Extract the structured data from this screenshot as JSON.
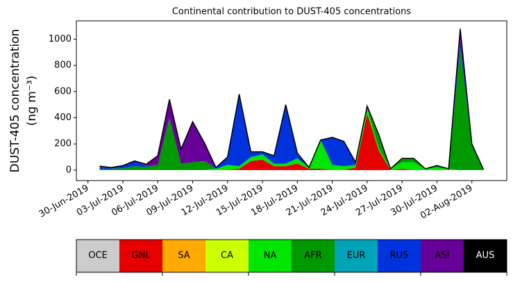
{
  "chart_data": {
    "type": "stacked_area",
    "title": "Continental contribution to DUST-405 concentrations",
    "y_label": "DUST-405 concentration",
    "y_label_unit": "(ng m⁻³)",
    "x": [
      "2019-07-01",
      "2019-07-02",
      "2019-07-03",
      "2019-07-04",
      "2019-07-05",
      "2019-07-06",
      "2019-07-07",
      "2019-07-08",
      "2019-07-09",
      "2019-07-10",
      "2019-07-11",
      "2019-07-12",
      "2019-07-13",
      "2019-07-14",
      "2019-07-15",
      "2019-07-16",
      "2019-07-17",
      "2019-07-18",
      "2019-07-19",
      "2019-07-20",
      "2019-07-21",
      "2019-07-22",
      "2019-07-23",
      "2019-07-24",
      "2019-07-25",
      "2019-07-26",
      "2019-07-27",
      "2019-07-28",
      "2019-07-29",
      "2019-07-30",
      "2019-07-31",
      "2019-08-01",
      "2019-08-02",
      "2019-08-03"
    ],
    "series": [
      {
        "name": "OCE",
        "color": "#cccccc",
        "values": [
          0,
          0,
          0,
          0,
          0,
          0,
          0,
          0,
          0,
          0,
          0,
          0,
          0,
          0,
          0,
          0,
          0,
          0,
          0,
          0,
          0,
          0,
          0,
          0,
          0,
          0,
          0,
          0,
          0,
          0,
          0,
          0,
          0,
          0
        ]
      },
      {
        "name": "GNL",
        "color": "#e60000",
        "values": [
          0,
          0,
          0,
          0,
          0,
          0,
          0,
          0,
          0,
          0,
          0,
          0,
          10,
          70,
          80,
          30,
          30,
          50,
          10,
          10,
          0,
          0,
          20,
          430,
          150,
          0,
          10,
          0,
          0,
          0,
          0,
          0,
          0,
          0
        ]
      },
      {
        "name": "SA",
        "color": "#ffaa00",
        "values": [
          0,
          0,
          0,
          0,
          0,
          0,
          0,
          0,
          0,
          0,
          0,
          0,
          0,
          0,
          0,
          0,
          0,
          0,
          0,
          0,
          0,
          0,
          0,
          0,
          0,
          0,
          0,
          0,
          0,
          0,
          0,
          0,
          0,
          0
        ]
      },
      {
        "name": "CA",
        "color": "#ccff00",
        "values": [
          0,
          0,
          0,
          0,
          0,
          0,
          0,
          0,
          0,
          0,
          0,
          0,
          0,
          0,
          0,
          0,
          0,
          0,
          0,
          0,
          0,
          0,
          0,
          0,
          0,
          0,
          0,
          0,
          0,
          0,
          0,
          0,
          0,
          0
        ]
      },
      {
        "name": "NA",
        "color": "#00e600",
        "values": [
          0,
          0,
          0,
          0,
          0,
          0,
          0,
          0,
          0,
          0,
          10,
          40,
          20,
          30,
          40,
          20,
          20,
          40,
          10,
          220,
          40,
          30,
          20,
          40,
          20,
          10,
          50,
          60,
          10,
          20,
          10,
          0,
          0,
          0
        ]
      },
      {
        "name": "AFR",
        "color": "#009900",
        "values": [
          10,
          10,
          15,
          30,
          25,
          40,
          400,
          50,
          60,
          70,
          0,
          0,
          0,
          0,
          0,
          0,
          0,
          0,
          0,
          0,
          0,
          0,
          0,
          0,
          100,
          0,
          30,
          30,
          0,
          15,
          0,
          930,
          190,
          5
        ]
      },
      {
        "name": "EUR",
        "color": "#00a3b8",
        "values": [
          0,
          0,
          0,
          0,
          0,
          0,
          0,
          0,
          0,
          0,
          0,
          0,
          0,
          0,
          0,
          0,
          0,
          0,
          0,
          0,
          0,
          0,
          0,
          0,
          0,
          0,
          0,
          0,
          0,
          0,
          0,
          0,
          0,
          0
        ]
      },
      {
        "name": "RUS",
        "color": "#0033dd",
        "values": [
          10,
          10,
          20,
          40,
          10,
          0,
          0,
          0,
          0,
          0,
          10,
          60,
          550,
          40,
          20,
          60,
          450,
          40,
          0,
          0,
          210,
          190,
          20,
          20,
          0,
          0,
          0,
          0,
          0,
          0,
          0,
          60,
          0,
          0
        ]
      },
      {
        "name": "ASI",
        "color": "#660099",
        "values": [
          10,
          0,
          0,
          0,
          10,
          70,
          140,
          110,
          310,
          140,
          0,
          0,
          0,
          0,
          0,
          0,
          0,
          0,
          0,
          0,
          0,
          0,
          0,
          0,
          0,
          0,
          0,
          0,
          0,
          0,
          0,
          90,
          10,
          0
        ]
      },
      {
        "name": "AUS",
        "color": "#000000",
        "values": [
          0,
          0,
          0,
          0,
          0,
          0,
          0,
          0,
          0,
          0,
          0,
          0,
          0,
          0,
          0,
          0,
          0,
          0,
          0,
          0,
          0,
          0,
          0,
          0,
          0,
          0,
          0,
          0,
          0,
          0,
          0,
          0,
          0,
          0
        ]
      }
    ],
    "xlim": [
      "2019-06-29",
      "2019-08-05"
    ],
    "xticks": [
      {
        "value": "2019-06-30",
        "label": "30-Jun-2019"
      },
      {
        "value": "2019-07-03",
        "label": "03-Jul-2019"
      },
      {
        "value": "2019-07-06",
        "label": "06-Jul-2019"
      },
      {
        "value": "2019-07-09",
        "label": "09-Jul-2019"
      },
      {
        "value": "2019-07-12",
        "label": "12-Jul-2019"
      },
      {
        "value": "2019-07-15",
        "label": "15-Jul-2019"
      },
      {
        "value": "2019-07-18",
        "label": "18-Jul-2019"
      },
      {
        "value": "2019-07-21",
        "label": "21-Jul-2019"
      },
      {
        "value": "2019-07-24",
        "label": "24-Jul-2019"
      },
      {
        "value": "2019-07-27",
        "label": "27-Jul-2019"
      },
      {
        "value": "2019-07-30",
        "label": "30-Jul-2019"
      },
      {
        "value": "2019-08-02",
        "label": "02-Aug-2019"
      }
    ],
    "ylim": [
      -80,
      1140
    ],
    "yticks": [
      0,
      200,
      400,
      600,
      800,
      1000
    ]
  }
}
